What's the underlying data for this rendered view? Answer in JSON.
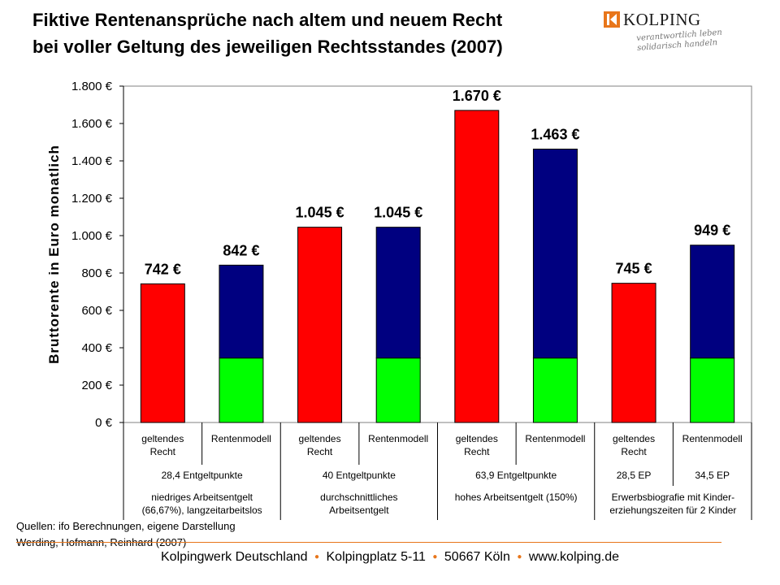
{
  "header": {
    "title_line1": "Fiktive Rentenansprüche nach altem und neuem Recht",
    "title_line2": "bei voller Geltung des jeweiligen Rechtsstandes (2007)"
  },
  "logo": {
    "name": "KOLPING",
    "slogan_line1": "verantwortlich leben",
    "slogan_line2": "solidarisch handeln"
  },
  "chart_data": {
    "type": "bar",
    "stacked": true,
    "ylabel": "Bruttorente in Euro monatlich",
    "ylim": [
      0,
      1800
    ],
    "yticks": [
      0,
      200,
      400,
      600,
      800,
      1000,
      1200,
      1400,
      1600,
      1800
    ],
    "ytick_labels": [
      "0 €",
      "200 €",
      "400 €",
      "600 €",
      "800 €",
      "1.000 €",
      "1.200 €",
      "1.400 €",
      "1.600 €",
      "1.800 €"
    ],
    "categories": [
      "geltendes Recht",
      "Rentenmodell",
      "geltendes Recht",
      "Rentenmodell",
      "geltendes Recht",
      "Rentenmodell",
      "geltendes Recht",
      "Rentenmodell"
    ],
    "series": [
      {
        "color": "#ff0000",
        "values": [
          742,
          0,
          1045,
          0,
          1670,
          0,
          745,
          0
        ]
      },
      {
        "color": "#00ff00",
        "values": [
          0,
          345,
          0,
          345,
          0,
          345,
          0,
          345
        ]
      },
      {
        "color": "#000080",
        "values": [
          0,
          497,
          0,
          700,
          0,
          1118,
          0,
          604
        ]
      }
    ],
    "totals": [
      742,
      842,
      1045,
      1045,
      1670,
      1463,
      745,
      949
    ],
    "data_labels": [
      "742 €",
      "842 €",
      "1.045 €",
      "1.045 €",
      "1.670 €",
      "1.463 €",
      "745 €",
      "949 €"
    ],
    "category_rows": {
      "row1": [
        [
          "geltendes",
          "Recht"
        ],
        [
          "Rentenmodell"
        ],
        [
          "geltendes",
          "Recht"
        ],
        [
          "Rentenmodell"
        ],
        [
          "geltendes",
          "Recht"
        ],
        [
          "Rentenmodell"
        ],
        [
          "geltendes",
          "Recht"
        ],
        [
          "Rentenmodell"
        ]
      ],
      "row2": [
        {
          "text": "28,4 Entgeltpunkte",
          "span": [
            0,
            1
          ]
        },
        {
          "text": "40 Entgeltpunkte",
          "span": [
            2,
            3
          ]
        },
        {
          "text": "63,9 Entgeltpunkte",
          "span": [
            4,
            5
          ]
        },
        {
          "text": "28,5 EP",
          "span": [
            6,
            6
          ]
        },
        {
          "text": "34,5 EP",
          "span": [
            7,
            7
          ]
        }
      ],
      "row3": [
        {
          "lines": [
            "niedriges Arbeitsentgelt",
            "(66,67%), langzeitarbeitslos"
          ],
          "span": [
            0,
            1
          ]
        },
        {
          "lines": [
            "durchschnittliches",
            "Arbeitsentgelt"
          ],
          "span": [
            2,
            3
          ]
        },
        {
          "lines": [
            "hohes Arbeitsentgelt (150%)"
          ],
          "span": [
            4,
            5
          ]
        },
        {
          "lines": [
            "Erwerbsbiografie mit Kinder-",
            "erziehungszeiten für 2 Kinder"
          ],
          "span": [
            6,
            7
          ]
        }
      ]
    }
  },
  "source": {
    "line1": "Quellen: ifo Berechnungen, eigene Darstellung",
    "line2": "Werding, Hofmann, Reinhard (2007)"
  },
  "footer": {
    "org": "Kolpingwerk Deutschland",
    "address": "Kolpingplatz 5-11",
    "city": "50667 Köln",
    "web": "www.kolping.de"
  },
  "colors": {
    "accent": "#e8761b",
    "red": "#ff0000",
    "green": "#00ff00",
    "navy": "#000080"
  }
}
